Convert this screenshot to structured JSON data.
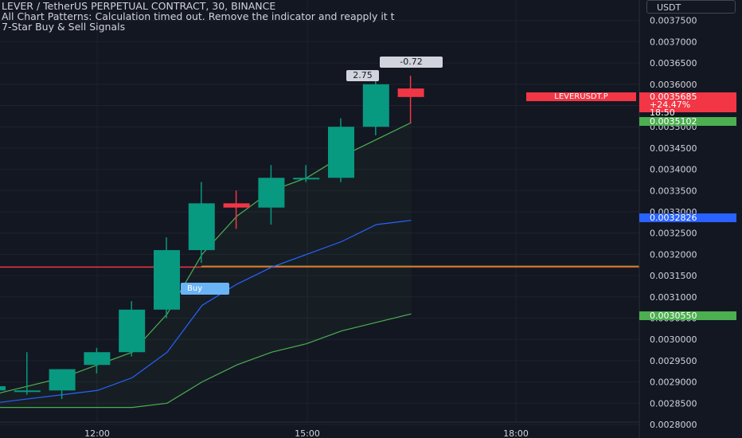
{
  "header": {
    "title": "LEVER / TetherUS PERPETUAL CONTRACT, 30, BINANCE",
    "indicator1": "All Chart Patterns: Calculation timed out. Remove the indicator and reapply it t",
    "indicator2": "7-Star Buy & Sell Signals"
  },
  "currency": "USDT",
  "price_scale": {
    "ticks": [
      "0.0037500",
      "0.0037000",
      "0.0036500",
      "0.0036000",
      "0.0035500",
      "0.0035000",
      "0.0034500",
      "0.0034000",
      "0.0033500",
      "0.0033000",
      "0.0032500",
      "0.0032000",
      "0.0031500",
      "0.0031000",
      "0.0030500",
      "0.0030000",
      "0.0029500",
      "0.0029000",
      "0.0028500",
      "0.0028000"
    ]
  },
  "time_axis": {
    "ticks": [
      "12:00",
      "15:00",
      "18:00"
    ]
  },
  "tags": {
    "symbol": "LEVERUSDT.P",
    "last_price": "0.0035685",
    "change": "+24.47%",
    "countdown": "18:50",
    "green_upper": "0.0035102",
    "blue": "0.0032826",
    "green_lower": "0.0030550"
  },
  "bubbles": {
    "a": "2.75",
    "b": "-0.72"
  },
  "signal": {
    "buy": "Buy"
  },
  "colors": {
    "background": "#131722",
    "up": "#089981",
    "down": "#f23645",
    "blue_line": "#2962ff",
    "green_line": "#4caf50",
    "hline_red": "#f23645",
    "hline_olive": "#9e9d24"
  },
  "chart_data": {
    "type": "candlestick",
    "candles": [
      {
        "time": "10:30",
        "open": 0.00288,
        "high": 0.0029,
        "low": 0.00286,
        "close": 0.00289
      },
      {
        "time": "11:00",
        "open": 0.00288,
        "high": 0.00297,
        "low": 0.00287,
        "close": 0.00288
      },
      {
        "time": "11:30",
        "open": 0.00288,
        "high": 0.00293,
        "low": 0.00286,
        "close": 0.00293
      },
      {
        "time": "12:00",
        "open": 0.00294,
        "high": 0.00298,
        "low": 0.00292,
        "close": 0.00297
      },
      {
        "time": "12:30",
        "open": 0.00297,
        "high": 0.00309,
        "low": 0.00296,
        "close": 0.00307
      },
      {
        "time": "13:00",
        "open": 0.00307,
        "high": 0.00324,
        "low": 0.00305,
        "close": 0.00321
      },
      {
        "time": "13:30",
        "open": 0.00321,
        "high": 0.00337,
        "low": 0.00318,
        "close": 0.00332
      },
      {
        "time": "14:00",
        "open": 0.00332,
        "high": 0.00335,
        "low": 0.00326,
        "close": 0.00331
      },
      {
        "time": "14:30",
        "open": 0.00331,
        "high": 0.00341,
        "low": 0.00327,
        "close": 0.00338
      },
      {
        "time": "15:00",
        "open": 0.00338,
        "high": 0.00341,
        "low": 0.00337,
        "close": 0.00338
      },
      {
        "time": "15:30",
        "open": 0.00338,
        "high": 0.00352,
        "low": 0.00337,
        "close": 0.0035
      },
      {
        "time": "16:00",
        "open": 0.0035,
        "high": 0.00361,
        "low": 0.00348,
        "close": 0.0036
      },
      {
        "time": "16:30",
        "open": 0.00359,
        "high": 0.00362,
        "low": 0.00351,
        "close": 0.00357
      }
    ],
    "series": [
      {
        "values": [
          0.00285,
          0.00286,
          0.00287,
          0.00288,
          0.00291,
          0.00297,
          0.00308,
          0.00313,
          0.00317,
          0.0032,
          0.00323,
          0.00327,
          0.00328
        ]
      },
      {
        "values": [
          0.00284,
          0.00284,
          0.00284,
          0.00284,
          0.00284,
          0.00285,
          0.0029,
          0.00294,
          0.00297,
          0.00299,
          0.00302,
          0.00304,
          0.00306
        ]
      },
      {
        "values": [
          0.00287,
          0.00289,
          0.00291,
          0.00294,
          0.00297,
          0.00306,
          0.0032,
          0.00329,
          0.00335,
          0.00338,
          0.00343,
          0.00347,
          0.00351
        ]
      }
    ],
    "hlines": [
      {
        "price": 0.00317,
        "color": "red"
      },
      {
        "price": 0.003172,
        "color": "olive"
      }
    ],
    "ylim": [
      0.0028,
      0.0038
    ],
    "grid": true
  }
}
